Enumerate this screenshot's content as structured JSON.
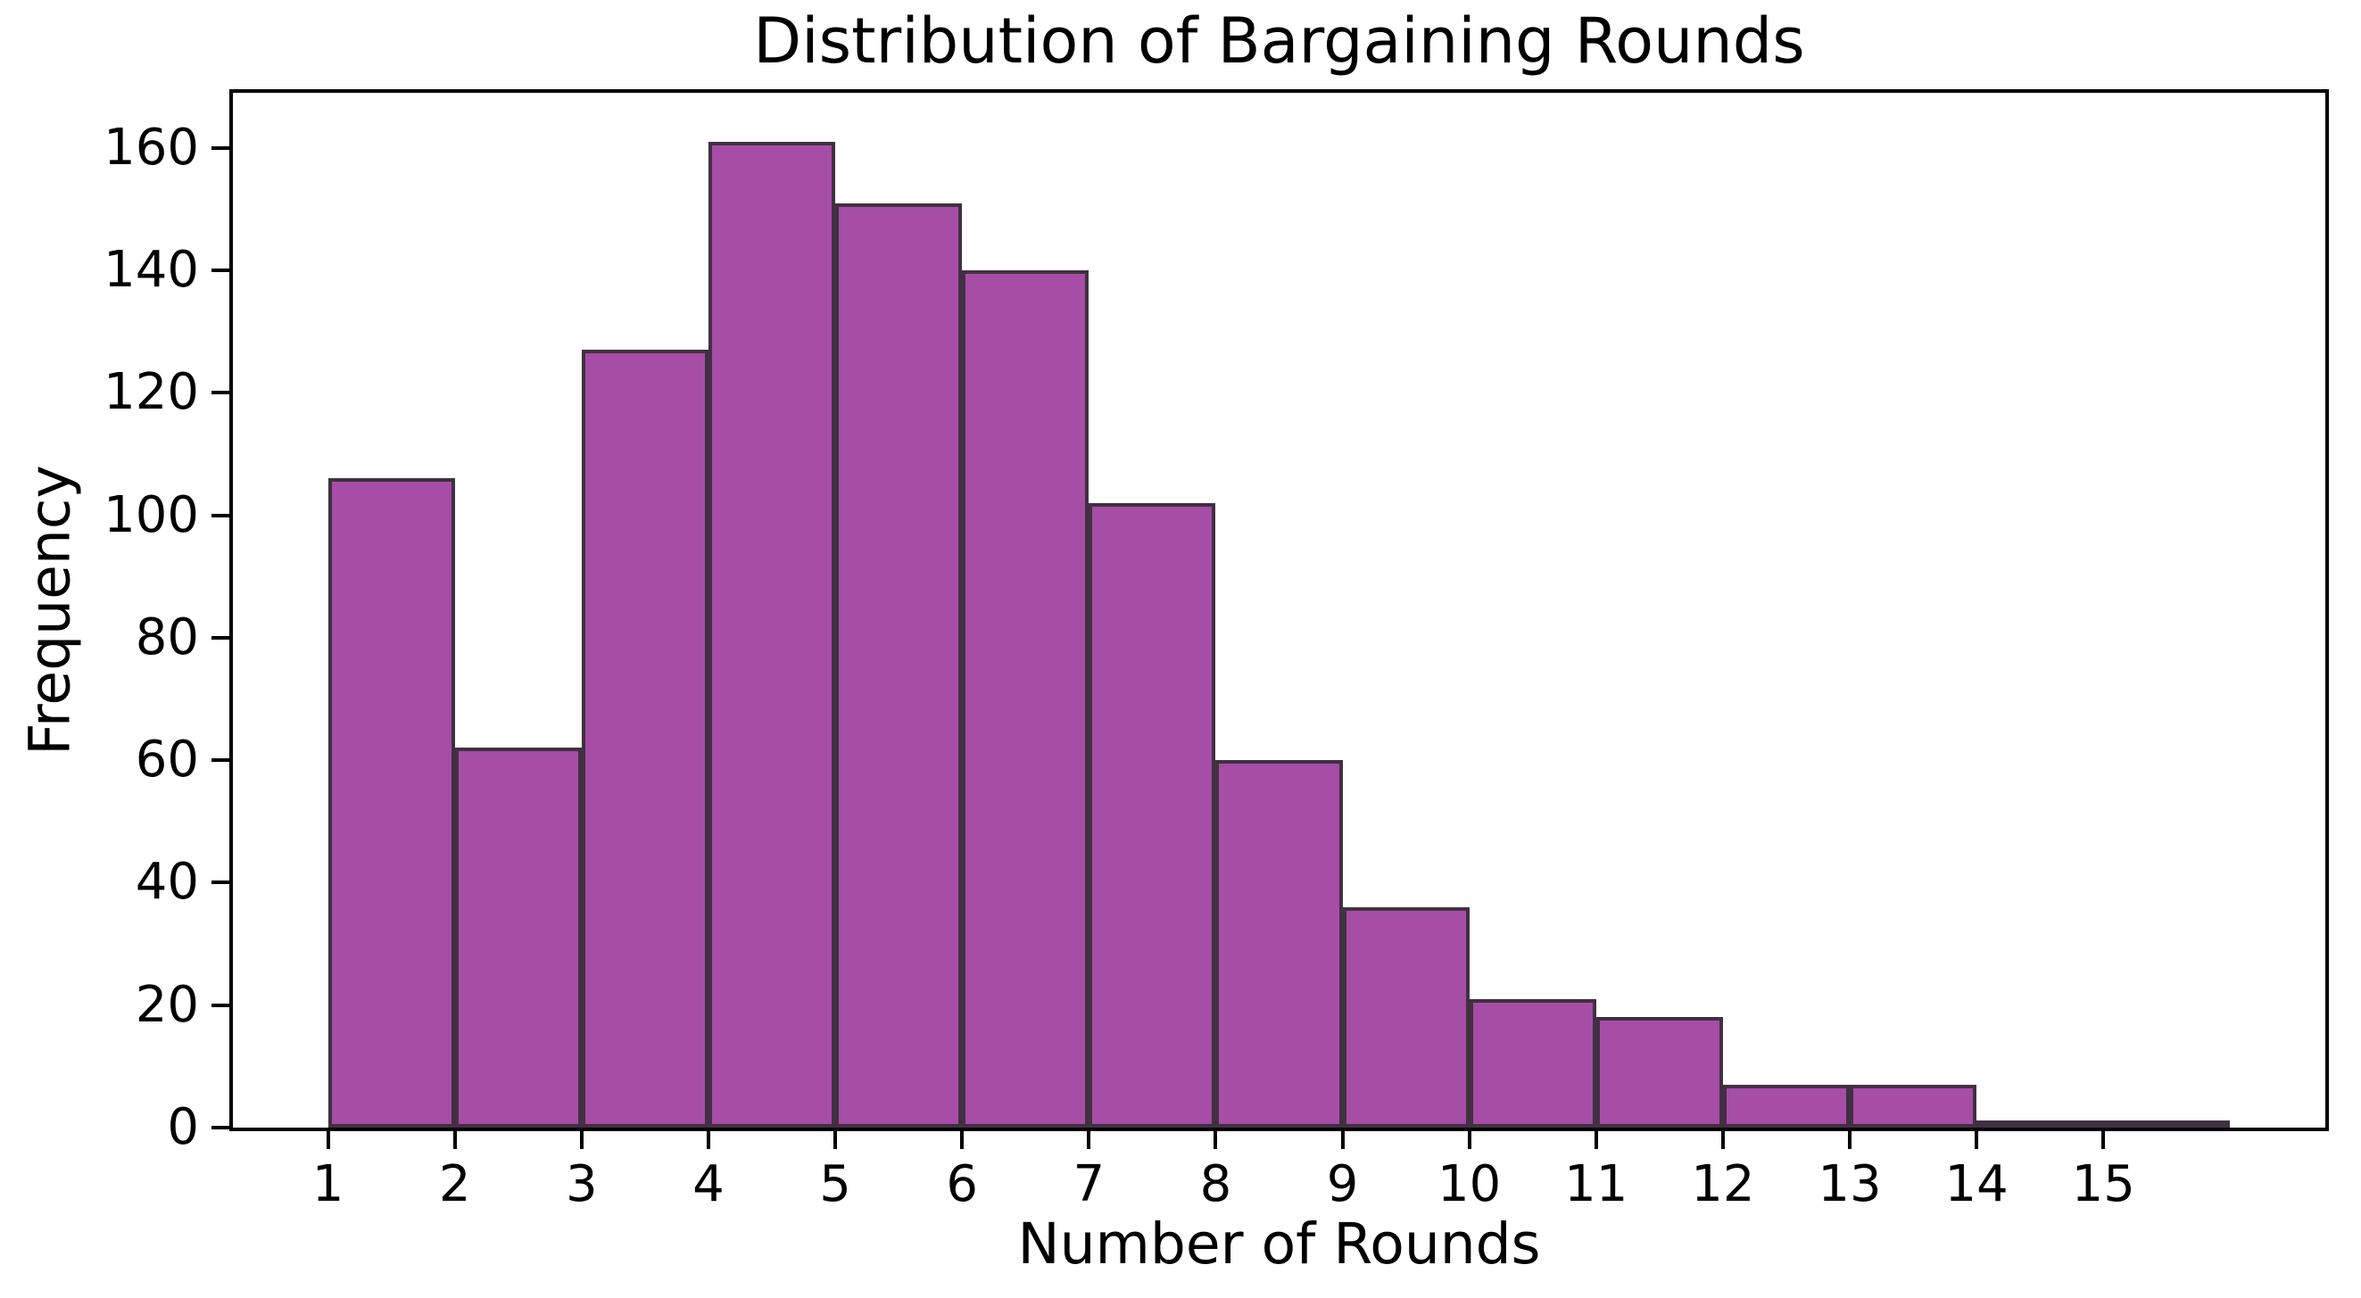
{
  "title": "Distribution of Bargaining Rounds",
  "xlabel": "Number of Rounds",
  "ylabel": "Frequency",
  "chart_data": {
    "type": "bar",
    "subtype": "histogram",
    "title": "Distribution of Bargaining Rounds",
    "xlabel": "Number of Rounds",
    "ylabel": "Frequency",
    "bin_start": 1,
    "bin_width": 1,
    "bin_edges": [
      1,
      2,
      3,
      4,
      5,
      6,
      7,
      8,
      9,
      10,
      11,
      12,
      13,
      14,
      15,
      16
    ],
    "frequencies": [
      106,
      62,
      127,
      161,
      151,
      140,
      102,
      60,
      36,
      21,
      18,
      7,
      7,
      1,
      1
    ],
    "xticks": [
      1,
      2,
      3,
      4,
      5,
      6,
      7,
      8,
      9,
      10,
      11,
      12,
      13,
      14,
      15
    ],
    "yticks": [
      0,
      20,
      40,
      60,
      80,
      100,
      120,
      140,
      160
    ],
    "xlim": [
      0.25,
      16.75
    ],
    "ylim": [
      0,
      169
    ],
    "grid": false,
    "legend_position": "none",
    "bar_color": "#a64da6",
    "bar_edge_color": "#413041",
    "spine_color": "#000000",
    "text_color": "#000000"
  }
}
